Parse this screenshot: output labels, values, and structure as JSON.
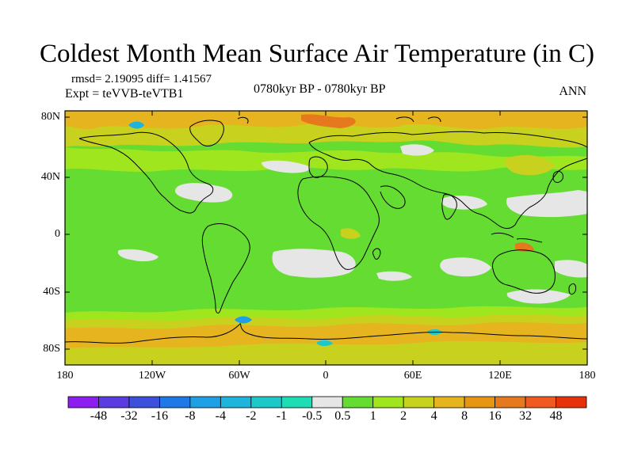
{
  "title": "Coldest Month Mean Surface Air Temperature (in C)",
  "stats_line": "rmsd= 2.19095 diff= 1.41567",
  "experiment": "Expt = teVVB-teVTB1",
  "period": "0780kyr BP - 0780kyr BP",
  "season": "ANN",
  "lat_labels": [
    "80N",
    "40N",
    "0",
    "40S",
    "80S"
  ],
  "lon_labels": [
    "180",
    "120W",
    "60W",
    "0",
    "60E",
    "120E",
    "180"
  ],
  "colorbar": {
    "labels": [
      "-48",
      "-32",
      "-16",
      "-8",
      "-4",
      "-2",
      "-1",
      "-0.5",
      "0.5",
      "1",
      "2",
      "4",
      "8",
      "16",
      "32",
      "48"
    ],
    "colors": [
      "#8c1ef0",
      "#5a3ce0",
      "#3c50dc",
      "#1e78e6",
      "#1ea0e6",
      "#1eb4dc",
      "#1ec8c8",
      "#1edcb4",
      "#e6e6e6",
      "#64dc32",
      "#a0e61e",
      "#c8d21e",
      "#e6b41e",
      "#e69614",
      "#e6781e",
      "#f05a1e",
      "#e6320a"
    ]
  },
  "colors": {
    "band_green": "#64dc32",
    "band_lime": "#a0e61e",
    "band_yellow": "#c8d21e",
    "band_orange": "#e6b41e",
    "band_red": "#e6781e",
    "band_grey": "#e6e6e6",
    "coast": "#000000"
  }
}
